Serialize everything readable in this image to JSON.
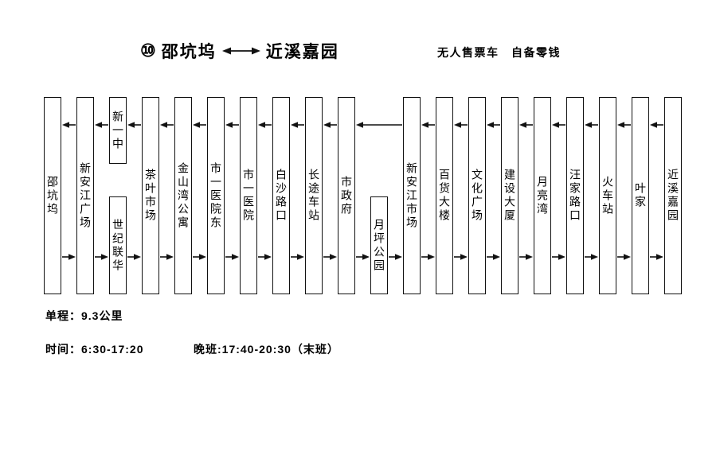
{
  "header": {
    "route_number": "⑩",
    "from": "邵坑坞",
    "to": "近溪嘉园",
    "notice": "无人售票车　自备零钱"
  },
  "route": {
    "columns": [
      {
        "full": "邵坑坞"
      },
      {
        "full": "新安江广场"
      },
      {
        "top": "新一中",
        "bottom": "世纪联华"
      },
      {
        "full": "茶叶市场"
      },
      {
        "full": "金山湾公寓"
      },
      {
        "full": "市一医院东"
      },
      {
        "full": "市一医院"
      },
      {
        "full": "白沙路口"
      },
      {
        "full": "长途车站"
      },
      {
        "full": "市政府"
      },
      {
        "bottom": "月坪公园"
      },
      {
        "full": "新安江市场"
      },
      {
        "full": "百货大楼"
      },
      {
        "full": "文化广场"
      },
      {
        "full": "建设大厦"
      },
      {
        "full": "月亮湾"
      },
      {
        "full": "汪家路口"
      },
      {
        "full": "火车站"
      },
      {
        "full": "叶家"
      },
      {
        "full": "近溪嘉园"
      }
    ]
  },
  "info": {
    "distance": "单程：9.3公里",
    "hours": "时间：6:30-17:20",
    "evening": "晚班:17:40-20:30（末班）"
  },
  "colors": {
    "ink": "#111111",
    "background": "#ffffff"
  }
}
